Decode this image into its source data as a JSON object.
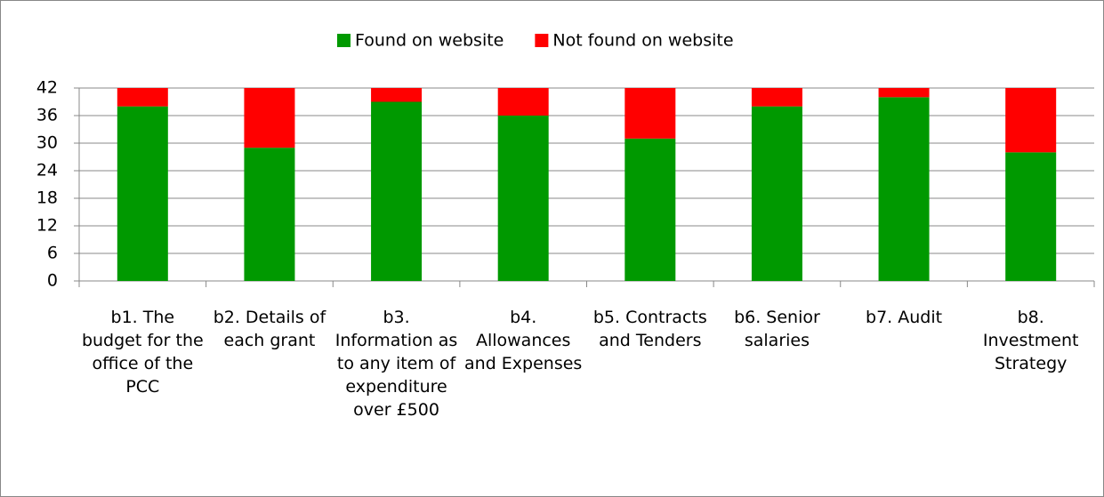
{
  "chart_data": {
    "type": "stacked_bar",
    "categories": [
      "b1. The budget for the office of the PCC",
      "b2. Details of each grant",
      "b3. Information as to any item of expenditure over £500",
      "b4. Allowances and Expenses",
      "b5. Contracts and Tenders",
      "b6. Senior salaries",
      "b7. Audit",
      "b8. Investment Strategy"
    ],
    "series": [
      {
        "name": "Found on website",
        "color": "#009900",
        "values": [
          38,
          29,
          39,
          36,
          31,
          38,
          40,
          28
        ]
      },
      {
        "name": "Not found on website",
        "color": "#ff0000",
        "values": [
          4,
          13,
          3,
          6,
          11,
          4,
          2,
          14
        ]
      }
    ],
    "ylim": [
      0,
      42
    ],
    "yticks": [
      0,
      6,
      12,
      18,
      24,
      30,
      36,
      42
    ],
    "grid": true,
    "legend": "top"
  }
}
